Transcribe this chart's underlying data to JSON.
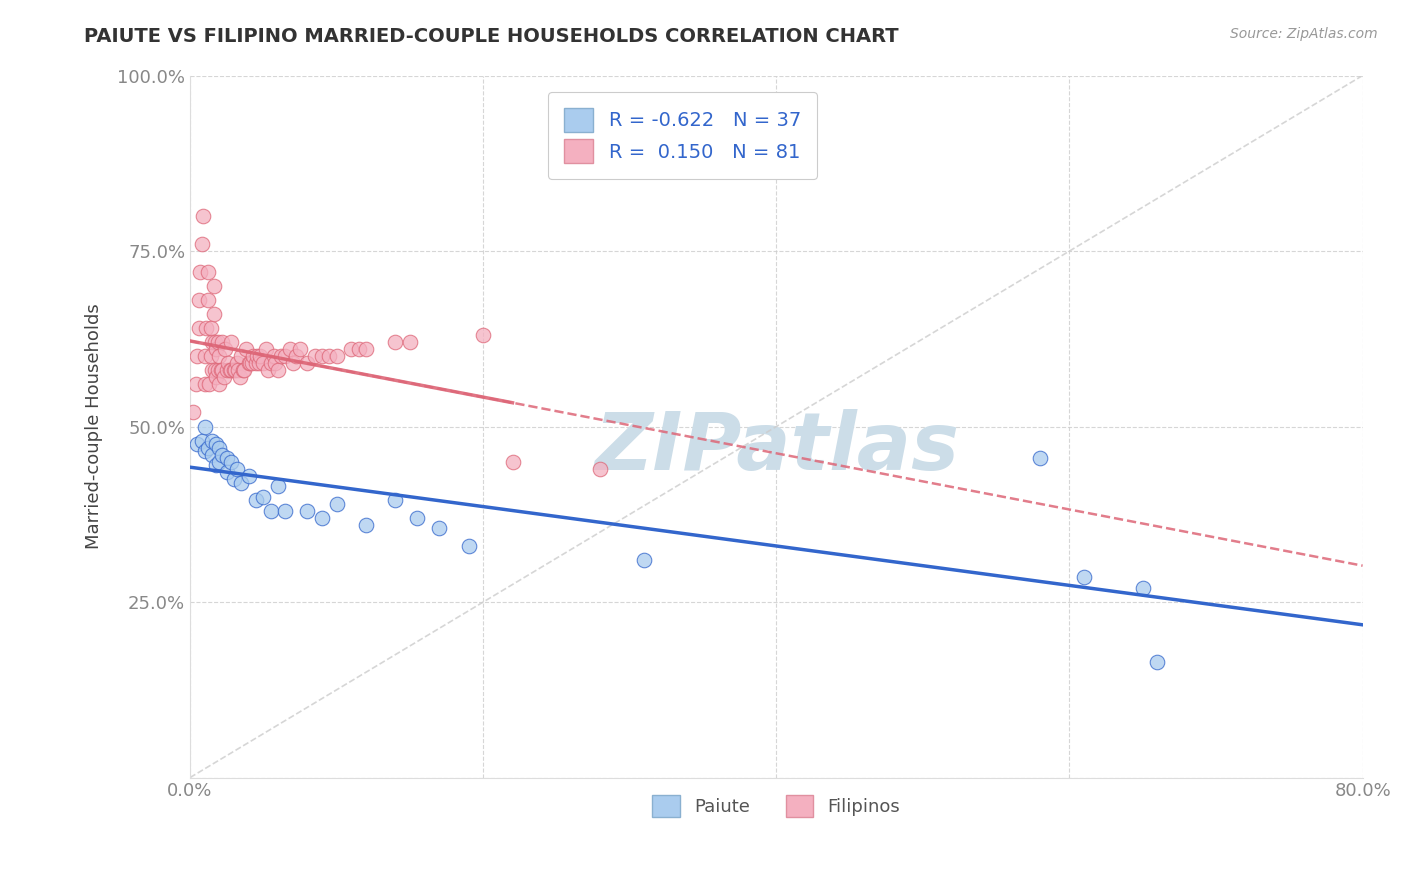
{
  "title": "PAIUTE VS FILIPINO MARRIED-COUPLE HOUSEHOLDS CORRELATION CHART",
  "source": "Source: ZipAtlas.com",
  "xlabel_paiute": "Paiute",
  "xlabel_filipino": "Filipinos",
  "ylabel": "Married-couple Households",
  "paiute_R": -0.622,
  "paiute_N": 37,
  "filipino_R": 0.15,
  "filipino_N": 81,
  "xlim": [
    0.0,
    0.8
  ],
  "ylim": [
    0.0,
    1.0
  ],
  "xticks": [
    0.0,
    0.2,
    0.4,
    0.6,
    0.8
  ],
  "yticks": [
    0.0,
    0.25,
    0.5,
    0.75,
    1.0
  ],
  "xtick_labels": [
    "0.0%",
    "",
    "",
    "",
    "80.0%"
  ],
  "ytick_labels": [
    "",
    "25.0%",
    "50.0%",
    "75.0%",
    "100.0%"
  ],
  "paiute_color": "#aaccee",
  "filipino_color": "#f4b0c0",
  "paiute_line_color": "#3366cc",
  "filipino_line_color": "#dd6677",
  "watermark_color": "#ccdde8",
  "background_color": "#ffffff",
  "grid_color": "#cccccc",
  "paiute_x": [
    0.005,
    0.008,
    0.01,
    0.01,
    0.012,
    0.015,
    0.015,
    0.018,
    0.018,
    0.02,
    0.02,
    0.022,
    0.025,
    0.025,
    0.028,
    0.03,
    0.032,
    0.035,
    0.04,
    0.045,
    0.05,
    0.055,
    0.06,
    0.065,
    0.08,
    0.09,
    0.1,
    0.12,
    0.14,
    0.155,
    0.17,
    0.19,
    0.31,
    0.58,
    0.61,
    0.65,
    0.66
  ],
  "paiute_y": [
    0.475,
    0.48,
    0.5,
    0.465,
    0.47,
    0.48,
    0.46,
    0.475,
    0.445,
    0.47,
    0.45,
    0.46,
    0.455,
    0.435,
    0.45,
    0.425,
    0.44,
    0.42,
    0.43,
    0.395,
    0.4,
    0.38,
    0.415,
    0.38,
    0.38,
    0.37,
    0.39,
    0.36,
    0.395,
    0.37,
    0.355,
    0.33,
    0.31,
    0.455,
    0.285,
    0.27,
    0.165
  ],
  "filipino_x": [
    0.002,
    0.004,
    0.005,
    0.006,
    0.006,
    0.007,
    0.008,
    0.009,
    0.01,
    0.01,
    0.011,
    0.012,
    0.012,
    0.013,
    0.014,
    0.014,
    0.015,
    0.015,
    0.016,
    0.016,
    0.017,
    0.017,
    0.018,
    0.018,
    0.019,
    0.019,
    0.02,
    0.02,
    0.021,
    0.022,
    0.022,
    0.023,
    0.024,
    0.025,
    0.026,
    0.027,
    0.028,
    0.028,
    0.03,
    0.031,
    0.032,
    0.033,
    0.034,
    0.035,
    0.036,
    0.037,
    0.038,
    0.04,
    0.041,
    0.042,
    0.043,
    0.045,
    0.046,
    0.047,
    0.048,
    0.05,
    0.052,
    0.053,
    0.055,
    0.057,
    0.058,
    0.06,
    0.062,
    0.065,
    0.068,
    0.07,
    0.072,
    0.075,
    0.08,
    0.085,
    0.09,
    0.095,
    0.1,
    0.11,
    0.115,
    0.12,
    0.14,
    0.15,
    0.2,
    0.22,
    0.28
  ],
  "filipino_y": [
    0.52,
    0.56,
    0.6,
    0.64,
    0.68,
    0.72,
    0.76,
    0.8,
    0.56,
    0.6,
    0.64,
    0.68,
    0.72,
    0.56,
    0.6,
    0.64,
    0.58,
    0.62,
    0.66,
    0.7,
    0.58,
    0.62,
    0.57,
    0.61,
    0.58,
    0.62,
    0.56,
    0.6,
    0.58,
    0.58,
    0.62,
    0.57,
    0.61,
    0.58,
    0.59,
    0.58,
    0.58,
    0.62,
    0.58,
    0.58,
    0.59,
    0.58,
    0.57,
    0.6,
    0.58,
    0.58,
    0.61,
    0.59,
    0.59,
    0.59,
    0.6,
    0.59,
    0.6,
    0.59,
    0.6,
    0.59,
    0.61,
    0.58,
    0.59,
    0.6,
    0.59,
    0.58,
    0.6,
    0.6,
    0.61,
    0.59,
    0.6,
    0.61,
    0.59,
    0.6,
    0.6,
    0.6,
    0.6,
    0.61,
    0.61,
    0.61,
    0.62,
    0.62,
    0.63,
    0.45,
    0.44
  ]
}
